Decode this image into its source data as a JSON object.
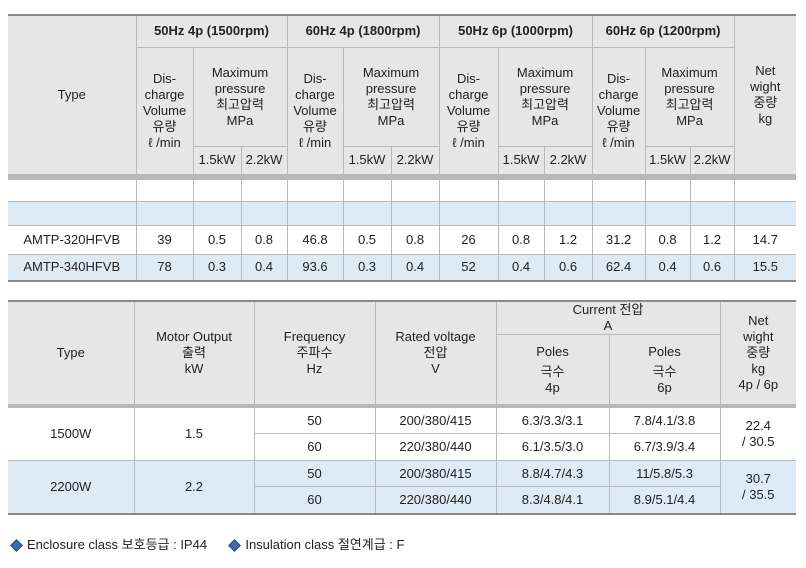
{
  "table1": {
    "type_header": "Type",
    "groups": [
      "50Hz 4p (1500rpm)",
      "60Hz 4p (1800rpm)",
      "50Hz 6p (1000rpm)",
      "60Hz 6p (1200rpm)"
    ],
    "net_weight_header": [
      "Net",
      "wight",
      "중량",
      "kg"
    ],
    "discharge_header": [
      "Dis-",
      "charge",
      "Volume",
      "유량",
      "ℓ /min"
    ],
    "pressure_header": [
      "Maximum",
      "pressure",
      "최고압력",
      "MPa"
    ],
    "power_cols": [
      "1.5kW",
      "2.2kW"
    ],
    "rows": [
      {
        "type": "AMTP-320HFVB",
        "values": [
          "39",
          "0.5",
          "0.8",
          "46.8",
          "0.5",
          "0.8",
          "26",
          "0.8",
          "1.2",
          "31.2",
          "0.8",
          "1.2",
          "14.7"
        ]
      },
      {
        "type": "AMTP-340HFVB",
        "values": [
          "78",
          "0.3",
          "0.4",
          "93.6",
          "0.3",
          "0.4",
          "52",
          "0.4",
          "0.6",
          "62.4",
          "0.4",
          "0.6",
          "15.5"
        ]
      }
    ]
  },
  "table2": {
    "type_header": "Type",
    "motor_header": [
      "Motor Output",
      "출력",
      "kW"
    ],
    "frequency_header": [
      "Frequency",
      "주파수",
      "Hz"
    ],
    "voltage_header": [
      "Rated voltage",
      "전압",
      "V"
    ],
    "current_header": [
      "Current 전압",
      "A"
    ],
    "poles4_header": [
      "Poles",
      "극수",
      "4p"
    ],
    "poles6_header": [
      "Poles",
      "극수",
      "6p"
    ],
    "weight_header": [
      "Net",
      "wight",
      "중량",
      "kg",
      "4p / 6p"
    ],
    "rows": [
      {
        "type": "1500W",
        "motor": "1.5",
        "weight": [
          "22.4",
          "/ 30.5"
        ],
        "sub": [
          {
            "freq": "50",
            "voltage": "200/380/415",
            "p4": "6.3/3.3/3.1",
            "p6": "7.8/4.1/3.8"
          },
          {
            "freq": "60",
            "voltage": "220/380/440",
            "p4": "6.1/3.5/3.0",
            "p6": "6.7/3.9/3.4"
          }
        ]
      },
      {
        "type": "2200W",
        "motor": "2.2",
        "weight": [
          "30.7",
          "/ 35.5"
        ],
        "sub": [
          {
            "freq": "50",
            "voltage": "200/380/415",
            "p4": "8.8/4.7/4.3",
            "p6": "11/5.8/5.3"
          },
          {
            "freq": "60",
            "voltage": "220/380/440",
            "p4": "8.3/4.8/4.1",
            "p6": "8.9/5.1/4.4"
          }
        ]
      }
    ]
  },
  "footer": {
    "enclosure": "Enclosure class 보호등급 : IP44",
    "insulation": "Insulation class 절연계급 : F",
    "accent_color": "#3a6ea8"
  }
}
